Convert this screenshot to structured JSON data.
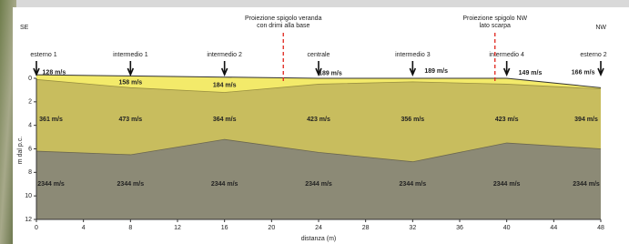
{
  "chart_data": {
    "type": "profile",
    "left_label": "SE",
    "right_label": "NW",
    "xlabel": "distanza (m)",
    "ylabel": "m dal p.c.",
    "xlim": [
      0,
      48
    ],
    "xticks": [
      0,
      4,
      8,
      12,
      16,
      20,
      24,
      28,
      32,
      36,
      40,
      44,
      48
    ],
    "ylim": [
      0,
      12
    ],
    "yticks": [
      0,
      2,
      4,
      6,
      8,
      10,
      12
    ],
    "y_inverted": true,
    "x": [
      0,
      8,
      16,
      24,
      32,
      40,
      48
    ],
    "surface": [
      -0.3,
      -0.2,
      -0.1,
      0,
      0,
      0,
      0.8
    ],
    "layer1_bottom": [
      0.1,
      0.8,
      1.2,
      0.5,
      0.3,
      0.5,
      0.9
    ],
    "refractor": [
      6.2,
      6.5,
      5.2,
      6.3,
      7.1,
      5.5,
      6.0
    ],
    "layer_colors": [
      "#f3ea6a",
      "#c8bd5e",
      "#8c8a76"
    ],
    "geophones": [
      "esterno 1",
      "intermedio 1",
      "intermedio 2",
      "centrale",
      "intermedio 3",
      "intermedio 4",
      "esterno 2"
    ],
    "layer1_velocities": [
      "128 m/s",
      "158 m/s",
      "184 m/s",
      "189 m/s",
      "189 m/s",
      "149 m/s",
      "166 m/s"
    ],
    "layer2_velocities": [
      "361 m/s",
      "473 m/s",
      "364 m/s",
      "423 m/s",
      "356 m/s",
      "423 m/s",
      "394 m/s"
    ],
    "layer3_velocities": [
      "2344 m/s",
      "2344 m/s",
      "2344 m/s",
      "2344 m/s",
      "2344 m/s",
      "2344 m/s",
      "2344 m/s"
    ],
    "markers": [
      {
        "x": 21,
        "label": [
          "Proiezione spigolo veranda",
          "con drimi alla base"
        ]
      },
      {
        "x": 39,
        "label": [
          "Proiezione spigolo NW",
          "lato scarpa"
        ]
      }
    ]
  }
}
